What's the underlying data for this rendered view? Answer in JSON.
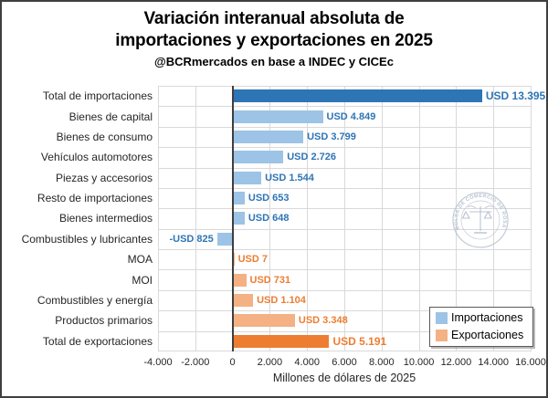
{
  "header": {
    "title_line1": "Variación interanual absoluta de",
    "title_line2": "importaciones y exportaciones en 2025",
    "subtitle": "@BCRmercados en base a INDEC y CICEc"
  },
  "watermark": {
    "text": "BOLSA DE COMERCIO DE ROSARIO"
  },
  "chart_data": {
    "type": "bar",
    "orientation": "horizontal",
    "title": "Variación interanual absoluta de importaciones y exportaciones en 2025",
    "subtitle": "@BCRmercados en base a INDEC y CICEc",
    "xlabel": "Millones de dólares de 2025",
    "xlim": [
      -4000,
      16000
    ],
    "xticks": [
      -4000,
      -2000,
      0,
      2000,
      4000,
      6000,
      8000,
      10000,
      12000,
      14000,
      16000
    ],
    "xtick_labels": [
      "-4.000",
      "-2.000",
      "0",
      "2.000",
      "4.000",
      "6.000",
      "8.000",
      "10.000",
      "12.000",
      "14.000",
      "16.000"
    ],
    "grid": true,
    "legend_position": "bottom-right",
    "bars": [
      {
        "category": "Total de importaciones",
        "value": 13395,
        "label": "USD 13.395",
        "series": "importaciones",
        "emphasis": true
      },
      {
        "category": "Bienes de capital",
        "value": 4849,
        "label": "USD 4.849",
        "series": "importaciones",
        "emphasis": false
      },
      {
        "category": "Bienes de consumo",
        "value": 3799,
        "label": "USD 3.799",
        "series": "importaciones",
        "emphasis": false
      },
      {
        "category": "Vehículos automotores",
        "value": 2726,
        "label": "USD 2.726",
        "series": "importaciones",
        "emphasis": false
      },
      {
        "category": "Piezas y accesorios",
        "value": 1544,
        "label": "USD 1.544",
        "series": "importaciones",
        "emphasis": false
      },
      {
        "category": "Resto de importaciones",
        "value": 653,
        "label": "USD 653",
        "series": "importaciones",
        "emphasis": false
      },
      {
        "category": "Bienes intermedios",
        "value": 648,
        "label": "USD 648",
        "series": "importaciones",
        "emphasis": false
      },
      {
        "category": "Combustibles y lubricantes",
        "value": -825,
        "label": "-USD 825",
        "series": "importaciones",
        "emphasis": false
      },
      {
        "category": "MOA",
        "value": 7,
        "label": "USD 7",
        "series": "exportaciones",
        "emphasis": false
      },
      {
        "category": "MOI",
        "value": 731,
        "label": "USD 731",
        "series": "exportaciones",
        "emphasis": false
      },
      {
        "category": "Combustibles y energía",
        "value": 1104,
        "label": "USD 1.104",
        "series": "exportaciones",
        "emphasis": false
      },
      {
        "category": "Productos primarios",
        "value": 3348,
        "label": "USD 3.348",
        "series": "exportaciones",
        "emphasis": false
      },
      {
        "category": "Total de exportaciones",
        "value": 5191,
        "label": "USD 5.191",
        "series": "exportaciones",
        "emphasis": true
      }
    ],
    "legend": [
      {
        "name": "Importaciones",
        "color": "#9DC3E6"
      },
      {
        "name": "Exportaciones",
        "color": "#F4B183"
      }
    ],
    "colors": {
      "importaciones_bar": "#9DC3E6",
      "importaciones_emphasis": "#2E75B6",
      "importaciones_label": "#2E75B6",
      "exportaciones_bar": "#F4B183",
      "exportaciones_emphasis": "#ED7D31",
      "exportaciones_label": "#ED7D31",
      "gridline": "#D9D9D9",
      "zero_axis": "#3F3F3F"
    }
  }
}
